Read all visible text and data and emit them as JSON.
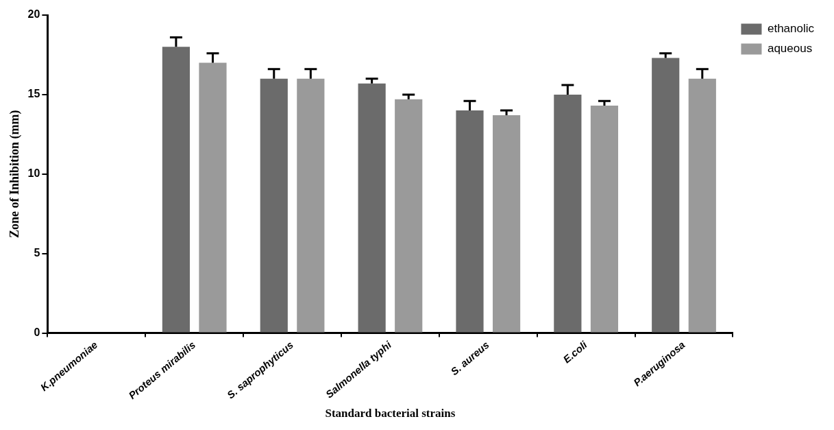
{
  "chart_data": {
    "type": "bar",
    "xlabel": "Standard bacterial strains",
    "ylabel": "Zone of Inhibition (mm)",
    "categories": [
      "K.pneumoniae",
      "Proteus mirabilis",
      "S. saprophyticus",
      "Salmonella typhi",
      "S. aureus",
      "E.coli",
      "P.aeruginosa"
    ],
    "series": [
      {
        "name": "ethanolic",
        "color": "#6b6b6b",
        "values": [
          0,
          18,
          16,
          15.7,
          14,
          15,
          17.3
        ],
        "errors": [
          null,
          0.6,
          0.6,
          0.3,
          0.6,
          0.6,
          0.3
        ]
      },
      {
        "name": "aqueous",
        "color": "#9a9a9a",
        "values": [
          0,
          17,
          16,
          14.7,
          13.7,
          14.3,
          16
        ],
        "errors": [
          null,
          0.6,
          0.6,
          0.3,
          0.3,
          0.3,
          0.6
        ]
      }
    ],
    "ylim": [
      0,
      20
    ],
    "yticks": [
      0,
      5,
      10,
      15,
      20
    ],
    "grid": false,
    "legend": "top right"
  }
}
